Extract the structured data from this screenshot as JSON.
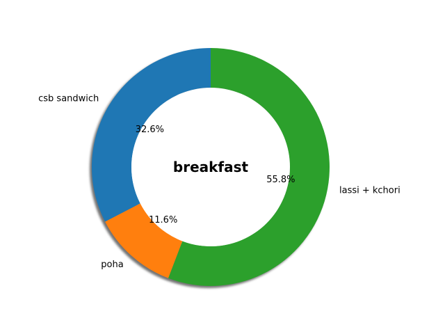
{
  "chart_data": {
    "type": "pie",
    "variant": "donut",
    "center_text": "breakfast",
    "shadow": true,
    "start_angle_deg": 90,
    "direction": "counterclockwise",
    "slices": [
      {
        "label": "csb sandwich",
        "value": 32.6,
        "pct_text": "32.6%",
        "color": "#1f77b4"
      },
      {
        "label": "poha",
        "value": 11.6,
        "pct_text": "11.6%",
        "color": "#ff7f0e"
      },
      {
        "label": "lassi + kchori",
        "value": 55.8,
        "pct_text": "55.8%",
        "color": "#2ca02c"
      }
    ]
  }
}
